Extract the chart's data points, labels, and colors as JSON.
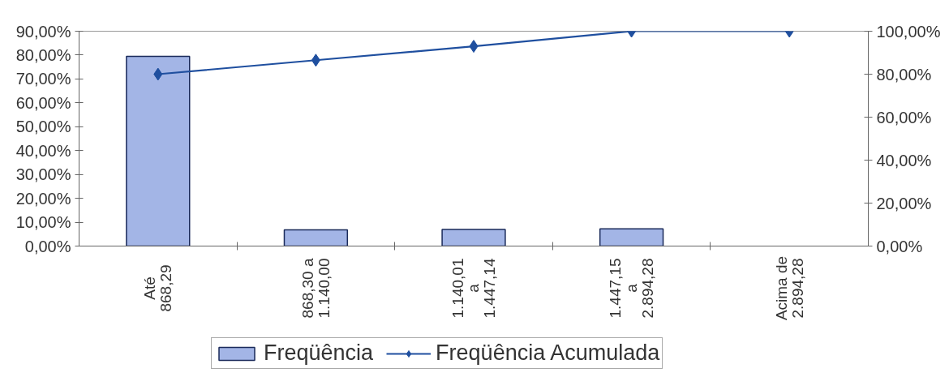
{
  "chart_data": {
    "type": "bar",
    "categories": [
      "Até\n868,29",
      "868,30 a\n1.140,00",
      "1.140,01\na\n1.447,14",
      "1.447,15\na\n2.894,28",
      "Acima de\n2.894,28"
    ],
    "series": [
      {
        "name": "Freqüência",
        "color": "#a3b5e6",
        "values": [
          79.5,
          6.8,
          7.0,
          7.2,
          null
        ]
      },
      {
        "name": "Freqüência Acumulada",
        "type": "line",
        "axis": "y2",
        "color": "#1f4f9f",
        "values": [
          80,
          86.5,
          93,
          100,
          100
        ]
      }
    ],
    "ylim": [
      0,
      90
    ],
    "yticks": [
      {
        "value": 0,
        "label": "0,00%"
      },
      {
        "value": 10,
        "label": "10,00%"
      },
      {
        "value": 20,
        "label": "20,00%"
      },
      {
        "value": 30,
        "label": "30,00%"
      },
      {
        "value": 40,
        "label": "40,00%"
      },
      {
        "value": 50,
        "label": "50,00%"
      },
      {
        "value": 60,
        "label": "60,00%"
      },
      {
        "value": 70,
        "label": "70,00%"
      },
      {
        "value": 80,
        "label": "80,00%"
      },
      {
        "value": 90,
        "label": "90,00%"
      }
    ],
    "y2lim": [
      0,
      100
    ],
    "y2ticks": [
      {
        "value": 0,
        "label": "0,00%"
      },
      {
        "value": 20,
        "label": "20,00%"
      },
      {
        "value": 40,
        "label": "40,00%"
      },
      {
        "value": 60,
        "label": "60,00%"
      },
      {
        "value": 80,
        "label": "80,00%"
      },
      {
        "value": 100,
        "label": "100,00%"
      }
    ],
    "marker": "diamond",
    "legend": "bottom"
  }
}
